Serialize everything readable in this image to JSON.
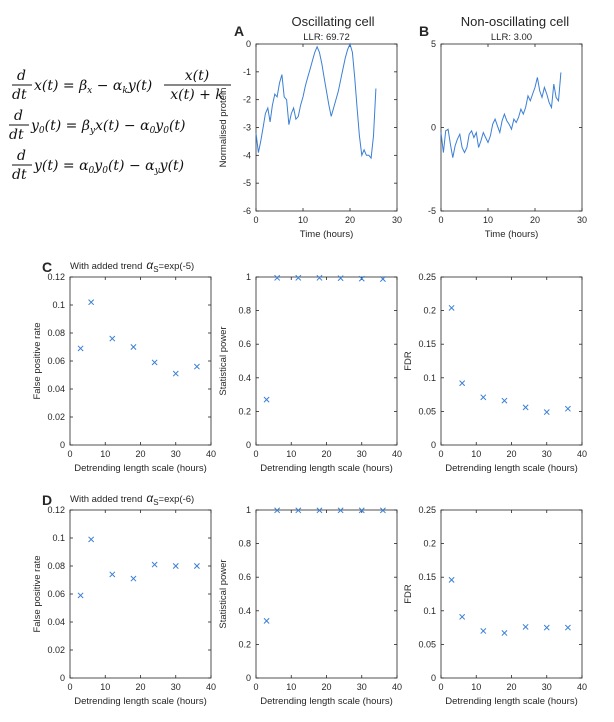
{
  "headers": {
    "oscillating": "Oscillating cell",
    "non_oscillating": "Non-oscillating cell"
  },
  "equations": {
    "frac_d": "d",
    "frac_dt": "dt",
    "eq1_lhs": "x(t) = β",
    "eq1_sub_x": "x",
    "eq1_minus": " − α",
    "eq1_sub_k": "k",
    "eq1_y": "y(t)",
    "eq1_num": "x(t)",
    "eq1_den": "x(t) + k",
    "eq2_y0": "y",
    "eq2_sub0": "0",
    "eq2_mid": "(t) = β",
    "eq2_sub_y": "y",
    "eq2_rest": "x(t) − α",
    "eq2_sub0b": "0",
    "eq2_end": "y",
    "eq2_sub0c": "0",
    "eq2_tail": "(t)",
    "eq3_lhs": "y(t) = α",
    "eq3_sub0": "0",
    "eq3_mid": "y",
    "eq3_sub0b": "0",
    "eq3_rest": "(t) − α",
    "eq3_sub_y": "y",
    "eq3_tail": "y(t)"
  },
  "row_C_title": {
    "prefix": "With added trend",
    "symbol": "α",
    "sub": "S",
    "suffix": "=exp(-5)"
  },
  "row_D_title": {
    "prefix": "With added trend",
    "symbol": "α",
    "sub": "S",
    "suffix": "=exp(-6)"
  },
  "colors": {
    "series": "#3a7fd5",
    "axis": "#262626"
  },
  "chart_data": [
    {
      "id": "A",
      "panel_letter": "A",
      "type": "line",
      "title": "LLR: 69.72",
      "xlabel": "Time (hours)",
      "ylabel": "Normalised protein",
      "xlim": [
        0,
        30
      ],
      "ylim": [
        -6,
        0
      ],
      "xticks": [
        0,
        10,
        20,
        30
      ],
      "yticks": [
        -6,
        -5,
        -4,
        -3,
        -2,
        -1,
        0
      ],
      "x": [
        0,
        0.5,
        1,
        1.5,
        2,
        2.5,
        3,
        3.5,
        4,
        4.5,
        5,
        5.5,
        6,
        6.5,
        7,
        7.5,
        8,
        8.5,
        9,
        9.5,
        10,
        10.5,
        11,
        11.5,
        12,
        12.5,
        13,
        13.5,
        14,
        14.5,
        15,
        15.5,
        16,
        16.5,
        17,
        17.5,
        18,
        18.5,
        19,
        19.5,
        20,
        20.5,
        21,
        21.5,
        22,
        22.5,
        23,
        23.5,
        24,
        24.5,
        25,
        25.5
      ],
      "y": [
        -3.2,
        -3.9,
        -3.5,
        -3.0,
        -2.5,
        -2.3,
        -2.8,
        -2.2,
        -1.8,
        -1.9,
        -1.4,
        -1.1,
        -1.9,
        -2.0,
        -2.9,
        -2.5,
        -2.3,
        -2.7,
        -2.6,
        -2.2,
        -1.9,
        -1.5,
        -1.2,
        -0.9,
        -0.6,
        -0.3,
        -0.1,
        -0.3,
        -0.7,
        -1.2,
        -1.7,
        -2.2,
        -2.6,
        -2.3,
        -2.0,
        -1.7,
        -1.3,
        -0.9,
        -0.5,
        -0.2,
        0.0,
        -0.3,
        -1.2,
        -2.3,
        -3.3,
        -4.0,
        -3.8,
        -4.0,
        -4.0,
        -4.1,
        -3.3,
        -1.6
      ]
    },
    {
      "id": "B",
      "panel_letter": "B",
      "type": "line",
      "title": "LLR: 3.00",
      "xlabel": "Time (hours)",
      "ylabel": "",
      "xlim": [
        0,
        30
      ],
      "ylim": [
        -5,
        5
      ],
      "xticks": [
        0,
        10,
        20,
        30
      ],
      "yticks": [
        -5,
        0,
        5
      ],
      "x": [
        0,
        0.5,
        1,
        1.5,
        2,
        2.5,
        3,
        3.5,
        4,
        4.5,
        5,
        5.5,
        6,
        6.5,
        7,
        7.5,
        8,
        8.5,
        9,
        9.5,
        10,
        10.5,
        11,
        11.5,
        12,
        12.5,
        13,
        13.5,
        14,
        14.5,
        15,
        15.5,
        16,
        16.5,
        17,
        17.5,
        18,
        18.5,
        19,
        19.5,
        20,
        20.5,
        21,
        21.5,
        22,
        22.5,
        23,
        23.5,
        24,
        24.5,
        25,
        25.5
      ],
      "y": [
        -0.3,
        -1.5,
        -0.2,
        -0.1,
        -1.0,
        -1.8,
        -1.1,
        -0.7,
        -0.4,
        -1.2,
        -1.5,
        -1.2,
        -0.4,
        -0.2,
        -0.6,
        -0.3,
        -1.2,
        -0.8,
        -0.3,
        -0.6,
        -0.9,
        -0.5,
        0.2,
        0.5,
        0.1,
        -0.3,
        0.4,
        0.8,
        0.4,
        0.2,
        -0.1,
        0.5,
        0.3,
        0.6,
        1.1,
        0.8,
        1.2,
        1.9,
        1.6,
        2.0,
        2.4,
        3.0,
        2.2,
        1.8,
        2.4,
        2.0,
        1.5,
        1.2,
        2.6,
        1.8,
        1.6,
        3.3
      ]
    },
    {
      "id": "C1",
      "panel_letter": "C",
      "type": "scatter",
      "xlabel": "Detrending length scale (hours)",
      "ylabel": "False positive rate",
      "xlim": [
        0,
        40
      ],
      "ylim": [
        0,
        0.12
      ],
      "xticks": [
        0,
        10,
        20,
        30,
        40
      ],
      "yticks": [
        0,
        0.02,
        0.04,
        0.06,
        0.08,
        0.1,
        0.12
      ],
      "ytick_labels": [
        "0",
        "0.02",
        "0.04",
        "0.06",
        "0.08",
        "0.1",
        "0.12"
      ],
      "x": [
        3,
        6,
        12,
        18,
        24,
        30,
        36
      ],
      "y": [
        0.069,
        0.102,
        0.076,
        0.07,
        0.059,
        0.051,
        0.056
      ]
    },
    {
      "id": "C2",
      "panel_letter": "",
      "type": "scatter",
      "xlabel": "Detrending length scale (hours)",
      "ylabel": "Statistical power",
      "xlim": [
        0,
        40
      ],
      "ylim": [
        0,
        1
      ],
      "xticks": [
        0,
        10,
        20,
        30,
        40
      ],
      "yticks": [
        0,
        0.2,
        0.4,
        0.6,
        0.8,
        1
      ],
      "ytick_labels": [
        "0",
        "0.2",
        "0.4",
        "0.6",
        "0.8",
        "1"
      ],
      "x": [
        3,
        6,
        12,
        18,
        24,
        30,
        36
      ],
      "y": [
        0.27,
        0.995,
        0.995,
        0.995,
        0.993,
        0.99,
        0.988
      ]
    },
    {
      "id": "C3",
      "panel_letter": "",
      "type": "scatter",
      "xlabel": "Detrending length scale (hours)",
      "ylabel": "FDR",
      "xlim": [
        0,
        40
      ],
      "ylim": [
        0,
        0.25
      ],
      "xticks": [
        0,
        10,
        20,
        30,
        40
      ],
      "yticks": [
        0,
        0.05,
        0.1,
        0.15,
        0.2,
        0.25
      ],
      "ytick_labels": [
        "0",
        "0.05",
        "0.1",
        "0.15",
        "0.2",
        "0.25"
      ],
      "x": [
        3,
        6,
        12,
        18,
        24,
        30,
        36
      ],
      "y": [
        0.204,
        0.092,
        0.071,
        0.066,
        0.056,
        0.049,
        0.054
      ]
    },
    {
      "id": "D1",
      "panel_letter": "D",
      "type": "scatter",
      "xlabel": "Detrending length scale (hours)",
      "ylabel": "False positive rate",
      "xlim": [
        0,
        40
      ],
      "ylim": [
        0,
        0.12
      ],
      "xticks": [
        0,
        10,
        20,
        30,
        40
      ],
      "yticks": [
        0,
        0.02,
        0.04,
        0.06,
        0.08,
        0.1,
        0.12
      ],
      "ytick_labels": [
        "0",
        "0.02",
        "0.04",
        "0.06",
        "0.08",
        "0.1",
        "0.12"
      ],
      "x": [
        3,
        6,
        12,
        18,
        24,
        30,
        36
      ],
      "y": [
        0.059,
        0.099,
        0.074,
        0.071,
        0.081,
        0.08,
        0.08
      ]
    },
    {
      "id": "D2",
      "panel_letter": "",
      "type": "scatter",
      "xlabel": "Detrending length scale (hours)",
      "ylabel": "Statistical power",
      "xlim": [
        0,
        40
      ],
      "ylim": [
        0,
        1
      ],
      "xticks": [
        0,
        10,
        20,
        30,
        40
      ],
      "yticks": [
        0,
        0.2,
        0.4,
        0.6,
        0.8,
        1
      ],
      "ytick_labels": [
        "0",
        "0.2",
        "0.4",
        "0.6",
        "0.8",
        "1"
      ],
      "x": [
        3,
        6,
        12,
        18,
        24,
        30,
        36
      ],
      "y": [
        0.34,
        0.998,
        0.998,
        0.998,
        0.998,
        0.998,
        0.998
      ]
    },
    {
      "id": "D3",
      "panel_letter": "",
      "type": "scatter",
      "xlabel": "Detrending length scale (hours)",
      "ylabel": "FDR",
      "xlim": [
        0,
        40
      ],
      "ylim": [
        0,
        0.25
      ],
      "xticks": [
        0,
        10,
        20,
        30,
        40
      ],
      "yticks": [
        0,
        0.05,
        0.1,
        0.15,
        0.2,
        0.25
      ],
      "ytick_labels": [
        "0",
        "0.05",
        "0.1",
        "0.15",
        "0.2",
        "0.25"
      ],
      "x": [
        3,
        6,
        12,
        18,
        24,
        30,
        36
      ],
      "y": [
        0.146,
        0.091,
        0.07,
        0.067,
        0.076,
        0.075,
        0.075
      ]
    }
  ]
}
